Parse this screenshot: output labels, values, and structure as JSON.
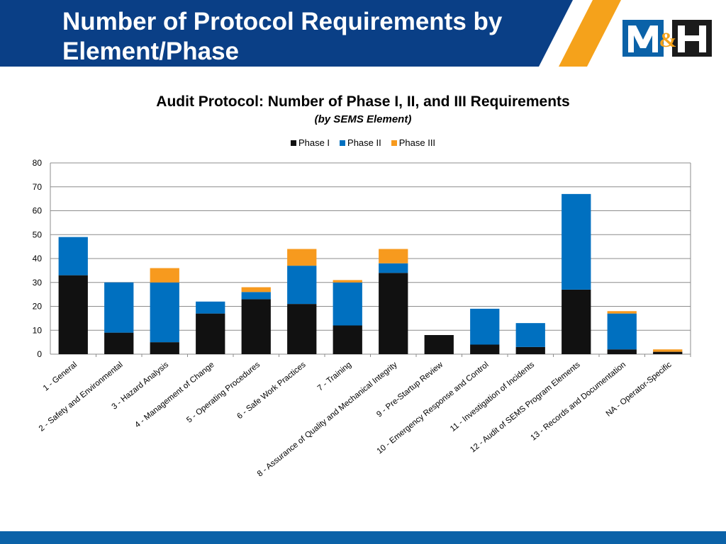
{
  "slide": {
    "title": "Number of Protocol Requirements by Element/Phase",
    "title_line1": "Number of Protocol Requirements by",
    "title_line2": "Element/Phase",
    "logo_text": "M&H"
  },
  "colors": {
    "header_blue": "#0a3f86",
    "accent_orange": "#f5a21b",
    "footer_blue": "#0b62a8",
    "phase1": "#111111",
    "phase2": "#0070c0",
    "phase3": "#f79a1e"
  },
  "chart_data": {
    "type": "bar",
    "stacked": true,
    "title": "Audit Protocol:  Number of Phase I, II, and III Requirements",
    "subtitle": "(by SEMS Element)",
    "xlabel": "",
    "ylabel": "",
    "ylim": [
      0,
      80
    ],
    "yticks": [
      0,
      10,
      20,
      30,
      40,
      50,
      60,
      70,
      80
    ],
    "grid": true,
    "legend_position": "top",
    "categories": [
      "1 - General",
      "2 - Safety and Environmental",
      "3 - Hazard Analysis",
      "4 - Management of Change",
      "5 - Operating Procedures",
      "6 - Safe Work Practices",
      "7 - Training",
      "8 - Assurance of Quality and Mechanical Integrity",
      "9 - Pre-Startup Review",
      "10 - Emergency Response and Control",
      "11 - Investigation of Incidents",
      "12 - Audit of SEMS Program Elements",
      "13 - Records and Documentation",
      "NA - Operator-Specific"
    ],
    "series": [
      {
        "name": "Phase I",
        "color": "#111111",
        "values": [
          33,
          9,
          5,
          17,
          23,
          21,
          12,
          34,
          8,
          4,
          3,
          27,
          2,
          1
        ]
      },
      {
        "name": "Phase II",
        "color": "#0070c0",
        "values": [
          16,
          21,
          25,
          5,
          3,
          16,
          18,
          4,
          0,
          15,
          10,
          40,
          15,
          0
        ]
      },
      {
        "name": "Phase III",
        "color": "#f79a1e",
        "values": [
          0,
          0,
          6,
          0,
          2,
          7,
          1,
          6,
          0,
          0,
          0,
          0,
          1,
          1
        ]
      }
    ]
  }
}
